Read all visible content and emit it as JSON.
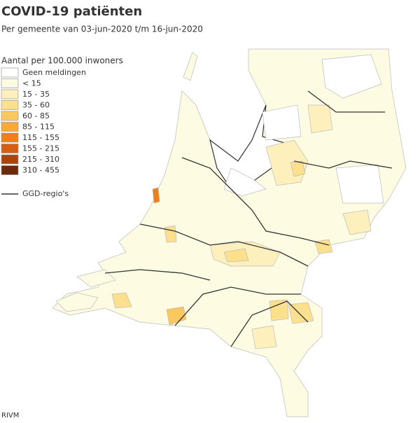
{
  "header": {
    "title": "COVID-19 patiënten",
    "subtitle": "Per gemeente van 03-jun-2020 t/m 16-jun-2020"
  },
  "legend": {
    "title": "Aantal per 100.000 inwoners",
    "items": [
      {
        "label": "Geen meldingen",
        "color": "#ffffff"
      },
      {
        "label": "< 15",
        "color": "#fefbe3"
      },
      {
        "label": "15 - 35",
        "color": "#fdf0bc"
      },
      {
        "label": "35 - 60",
        "color": "#fde08e"
      },
      {
        "label": "60 - 85",
        "color": "#fbc860"
      },
      {
        "label": "85 - 115",
        "color": "#f8a93a"
      },
      {
        "label": "115 - 155",
        "color": "#ee801c"
      },
      {
        "label": "155 - 215",
        "color": "#d65e12"
      },
      {
        "label": "215 - 310",
        "color": "#a9440c"
      },
      {
        "label": "310 - 455",
        "color": "#6c2b08"
      }
    ],
    "region_line": "GGD-regio's"
  },
  "source": "RIVM"
}
